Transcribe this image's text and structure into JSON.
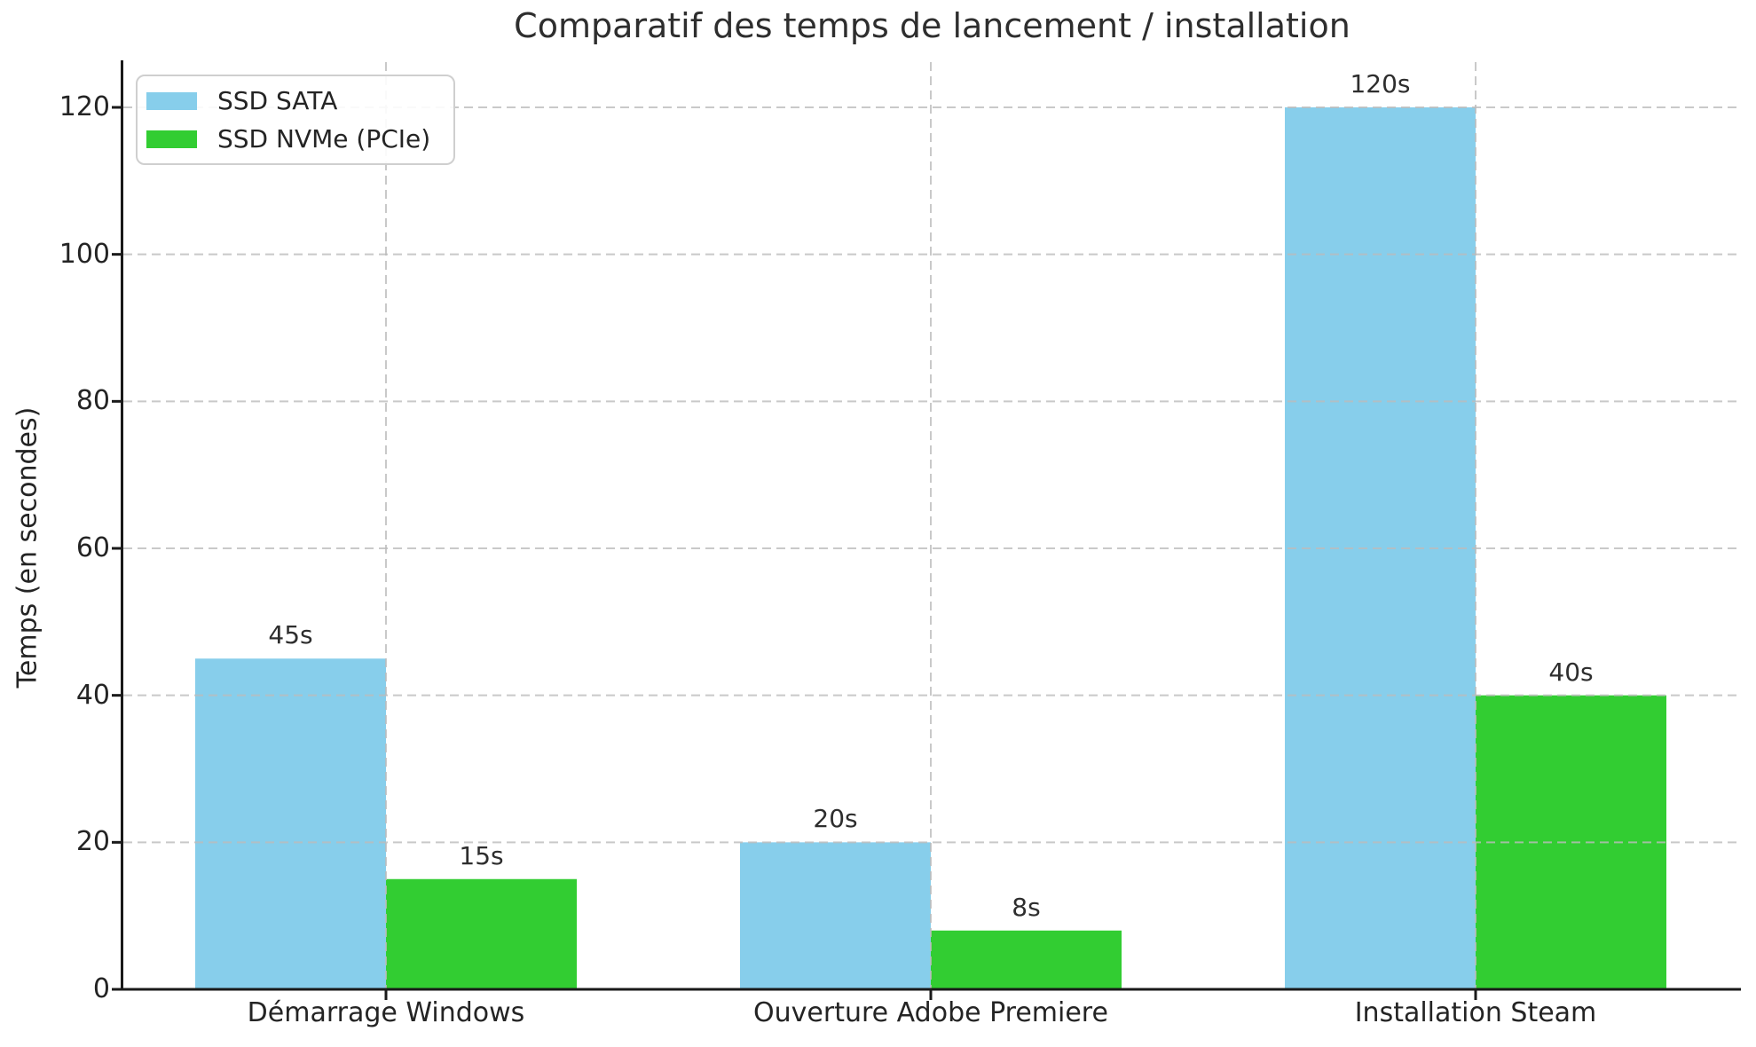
{
  "title": "Comparatif des temps de lancement / installation",
  "chart_data": {
    "type": "bar",
    "title": "Comparatif des temps de lancement / installation",
    "categories": [
      "Démarrage Windows",
      "Ouverture Adobe Premiere",
      "Installation Steam"
    ],
    "series": [
      {
        "name": "SSD SATA",
        "color": "#87CEEB",
        "values": [
          45,
          20,
          120
        ],
        "bar_labels": [
          "45s",
          "20s",
          "120s"
        ]
      },
      {
        "name": "SSD NVMe (PCIe)",
        "color": "#32CD32",
        "values": [
          15,
          8,
          40
        ],
        "bar_labels": [
          "15s",
          "8s",
          "40s"
        ]
      }
    ],
    "xlabel": "",
    "ylabel": "Temps (en secondes)",
    "ylim": [
      0,
      120
    ],
    "yticks": [
      0,
      20,
      40,
      60,
      80,
      100,
      120
    ],
    "grid": "dashed horizontal and vertical gridlines drawn above bars",
    "legend_position": "upper left",
    "axis_color": "#1a1a1a",
    "grid_color": "#bcbcbc",
    "text_color": "#242424",
    "background": "#ffffff"
  }
}
